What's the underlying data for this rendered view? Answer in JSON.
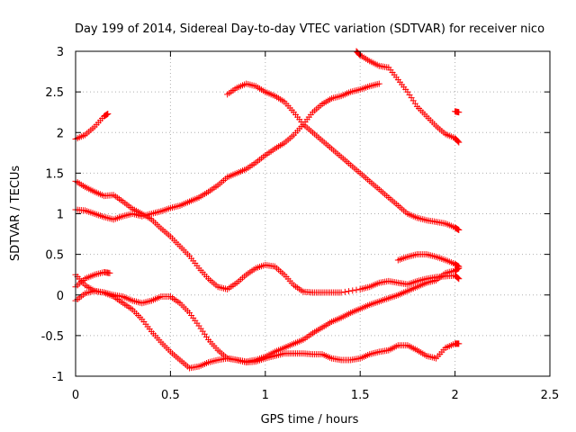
{
  "chart_data": {
    "type": "scatter",
    "title": "Day 199 of 2014, Sidereal Day-to-day VTEC variation (SDTVAR) for receiver nico",
    "xlabel": "GPS time / hours",
    "ylabel": "SDTVAR / TECUs",
    "xlim": [
      0,
      2.5
    ],
    "ylim": [
      -1,
      3
    ],
    "x_ticks": [
      "0",
      "0.5",
      "1",
      "1.5",
      "2",
      "2.5"
    ],
    "y_ticks": [
      "-1",
      "-0.5",
      "0",
      "0.5",
      "1",
      "1.5",
      "2",
      "2.5",
      "3"
    ],
    "grid": true,
    "marker": "+",
    "color": "#ff0000",
    "series": [
      {
        "name": "s1",
        "points": [
          [
            0.0,
            1.92
          ],
          [
            0.05,
            1.97
          ],
          [
            0.1,
            2.07
          ],
          [
            0.15,
            2.2
          ],
          [
            0.17,
            2.23
          ]
        ]
      },
      {
        "name": "s2",
        "points": [
          [
            0.0,
            1.4
          ],
          [
            0.05,
            1.33
          ],
          [
            0.1,
            1.27
          ],
          [
            0.15,
            1.22
          ],
          [
            0.2,
            1.23
          ],
          [
            0.25,
            1.15
          ],
          [
            0.3,
            1.06
          ],
          [
            0.35,
            1.0
          ],
          [
            0.4,
            0.93
          ],
          [
            0.45,
            0.82
          ],
          [
            0.5,
            0.72
          ],
          [
            0.55,
            0.6
          ],
          [
            0.6,
            0.48
          ],
          [
            0.65,
            0.33
          ],
          [
            0.7,
            0.2
          ],
          [
            0.75,
            0.1
          ],
          [
            0.8,
            0.07
          ],
          [
            0.85,
            0.15
          ],
          [
            0.9,
            0.25
          ],
          [
            0.95,
            0.33
          ],
          [
            1.0,
            0.37
          ],
          [
            1.05,
            0.35
          ],
          [
            1.1,
            0.25
          ],
          [
            1.15,
            0.12
          ],
          [
            1.2,
            0.04
          ],
          [
            1.25,
            0.03
          ],
          [
            1.3,
            0.03
          ],
          [
            1.35,
            0.03
          ],
          [
            1.4,
            0.03
          ],
          [
            1.5,
            0.07
          ],
          [
            1.55,
            0.1
          ],
          [
            1.6,
            0.15
          ],
          [
            1.65,
            0.17
          ],
          [
            1.7,
            0.15
          ],
          [
            1.75,
            0.13
          ],
          [
            1.8,
            0.17
          ],
          [
            1.85,
            0.2
          ],
          [
            1.9,
            0.22
          ],
          [
            1.95,
            0.23
          ],
          [
            2.0,
            0.24
          ],
          [
            2.02,
            0.2
          ]
        ]
      },
      {
        "name": "s3",
        "points": [
          [
            0.0,
            1.05
          ],
          [
            0.05,
            1.04
          ],
          [
            0.1,
            1.0
          ],
          [
            0.15,
            0.96
          ],
          [
            0.2,
            0.93
          ],
          [
            0.25,
            0.97
          ],
          [
            0.3,
            1.0
          ],
          [
            0.35,
            0.97
          ],
          [
            0.4,
            1.0
          ],
          [
            0.45,
            1.03
          ],
          [
            0.5,
            1.07
          ],
          [
            0.55,
            1.1
          ],
          [
            0.6,
            1.15
          ],
          [
            0.65,
            1.2
          ],
          [
            0.7,
            1.27
          ],
          [
            0.75,
            1.35
          ],
          [
            0.8,
            1.45
          ],
          [
            0.85,
            1.5
          ],
          [
            0.9,
            1.55
          ],
          [
            0.95,
            1.63
          ],
          [
            1.0,
            1.72
          ],
          [
            1.05,
            1.8
          ],
          [
            1.1,
            1.87
          ],
          [
            1.15,
            1.97
          ],
          [
            1.2,
            2.1
          ],
          [
            1.25,
            2.25
          ],
          [
            1.3,
            2.35
          ],
          [
            1.35,
            2.42
          ],
          [
            1.4,
            2.45
          ],
          [
            1.45,
            2.5
          ],
          [
            1.5,
            2.53
          ],
          [
            1.55,
            2.57
          ],
          [
            1.6,
            2.6
          ]
        ]
      },
      {
        "name": "s4",
        "points": [
          [
            0.8,
            2.47
          ],
          [
            0.85,
            2.55
          ],
          [
            0.9,
            2.6
          ],
          [
            0.95,
            2.57
          ],
          [
            1.0,
            2.5
          ],
          [
            1.05,
            2.45
          ],
          [
            1.1,
            2.38
          ],
          [
            1.15,
            2.25
          ],
          [
            1.2,
            2.1
          ],
          [
            1.25,
            2.0
          ],
          [
            1.3,
            1.9
          ],
          [
            1.35,
            1.8
          ],
          [
            1.4,
            1.7
          ],
          [
            1.45,
            1.6
          ],
          [
            1.5,
            1.5
          ],
          [
            1.55,
            1.4
          ],
          [
            1.6,
            1.3
          ],
          [
            1.65,
            1.2
          ],
          [
            1.7,
            1.1
          ],
          [
            1.75,
            1.0
          ],
          [
            1.8,
            0.95
          ],
          [
            1.85,
            0.92
          ],
          [
            1.9,
            0.9
          ],
          [
            1.95,
            0.88
          ],
          [
            2.0,
            0.83
          ],
          [
            2.02,
            0.8
          ]
        ]
      },
      {
        "name": "s5",
        "points": [
          [
            1.48,
            3.0
          ],
          [
            1.5,
            2.95
          ],
          [
            1.55,
            2.88
          ],
          [
            1.6,
            2.82
          ],
          [
            1.65,
            2.8
          ],
          [
            1.7,
            2.65
          ],
          [
            1.75,
            2.5
          ],
          [
            1.8,
            2.32
          ],
          [
            1.85,
            2.2
          ],
          [
            1.9,
            2.08
          ],
          [
            1.95,
            1.98
          ],
          [
            2.0,
            1.93
          ],
          [
            2.02,
            1.88
          ]
        ]
      },
      {
        "name": "s6",
        "points": [
          [
            2.0,
            2.26
          ],
          [
            2.02,
            2.25
          ]
        ]
      },
      {
        "name": "s7",
        "points": [
          [
            0.0,
            0.1
          ],
          [
            0.05,
            0.2
          ],
          [
            0.1,
            0.25
          ],
          [
            0.15,
            0.28
          ],
          [
            0.18,
            0.27
          ]
        ]
      },
      {
        "name": "s8",
        "points": [
          [
            0.0,
            0.25
          ],
          [
            0.05,
            0.12
          ],
          [
            0.1,
            0.05
          ],
          [
            0.15,
            0.03
          ],
          [
            0.2,
            0.0
          ],
          [
            0.25,
            -0.02
          ],
          [
            0.3,
            -0.07
          ],
          [
            0.35,
            -0.1
          ],
          [
            0.4,
            -0.07
          ],
          [
            0.45,
            -0.02
          ],
          [
            0.5,
            -0.02
          ],
          [
            0.55,
            -0.1
          ],
          [
            0.6,
            -0.22
          ],
          [
            0.65,
            -0.38
          ],
          [
            0.7,
            -0.55
          ],
          [
            0.75,
            -0.68
          ],
          [
            0.8,
            -0.78
          ],
          [
            0.85,
            -0.8
          ],
          [
            0.9,
            -0.83
          ],
          [
            0.95,
            -0.82
          ],
          [
            1.0,
            -0.78
          ],
          [
            1.05,
            -0.75
          ],
          [
            1.1,
            -0.72
          ],
          [
            1.15,
            -0.72
          ],
          [
            1.2,
            -0.72
          ],
          [
            1.25,
            -0.73
          ],
          [
            1.3,
            -0.73
          ],
          [
            1.35,
            -0.78
          ],
          [
            1.4,
            -0.8
          ],
          [
            1.45,
            -0.8
          ],
          [
            1.5,
            -0.78
          ],
          [
            1.55,
            -0.73
          ],
          [
            1.6,
            -0.7
          ],
          [
            1.65,
            -0.68
          ],
          [
            1.7,
            -0.62
          ],
          [
            1.75,
            -0.62
          ],
          [
            1.8,
            -0.68
          ],
          [
            1.85,
            -0.75
          ],
          [
            1.9,
            -0.78
          ],
          [
            1.95,
            -0.65
          ],
          [
            2.0,
            -0.6
          ],
          [
            2.02,
            -0.6
          ]
        ]
      },
      {
        "name": "s9",
        "points": [
          [
            0.0,
            -0.07
          ],
          [
            0.05,
            0.02
          ],
          [
            0.1,
            0.05
          ],
          [
            0.15,
            0.03
          ],
          [
            0.2,
            -0.02
          ],
          [
            0.25,
            -0.1
          ],
          [
            0.3,
            -0.18
          ],
          [
            0.35,
            -0.3
          ],
          [
            0.4,
            -0.45
          ],
          [
            0.45,
            -0.58
          ],
          [
            0.5,
            -0.7
          ],
          [
            0.55,
            -0.8
          ],
          [
            0.6,
            -0.9
          ],
          [
            0.65,
            -0.88
          ],
          [
            0.7,
            -0.83
          ],
          [
            0.75,
            -0.8
          ],
          [
            0.8,
            -0.78
          ],
          [
            0.85,
            -0.8
          ],
          [
            0.9,
            -0.82
          ],
          [
            0.95,
            -0.8
          ],
          [
            1.0,
            -0.76
          ],
          [
            1.05,
            -0.7
          ],
          [
            1.1,
            -0.65
          ],
          [
            1.15,
            -0.6
          ],
          [
            1.2,
            -0.55
          ],
          [
            1.25,
            -0.47
          ],
          [
            1.3,
            -0.4
          ],
          [
            1.35,
            -0.33
          ],
          [
            1.4,
            -0.28
          ],
          [
            1.45,
            -0.22
          ],
          [
            1.5,
            -0.17
          ],
          [
            1.55,
            -0.12
          ],
          [
            1.6,
            -0.08
          ],
          [
            1.65,
            -0.04
          ],
          [
            1.7,
            0.0
          ],
          [
            1.75,
            0.05
          ],
          [
            1.8,
            0.1
          ],
          [
            1.85,
            0.15
          ],
          [
            1.9,
            0.18
          ],
          [
            1.95,
            0.27
          ],
          [
            2.0,
            0.3
          ],
          [
            2.02,
            0.33
          ]
        ]
      },
      {
        "name": "s10",
        "points": [
          [
            1.7,
            0.43
          ],
          [
            1.75,
            0.47
          ],
          [
            1.8,
            0.5
          ],
          [
            1.85,
            0.5
          ],
          [
            1.9,
            0.47
          ],
          [
            1.95,
            0.43
          ],
          [
            2.0,
            0.38
          ],
          [
            2.02,
            0.35
          ]
        ]
      }
    ]
  }
}
